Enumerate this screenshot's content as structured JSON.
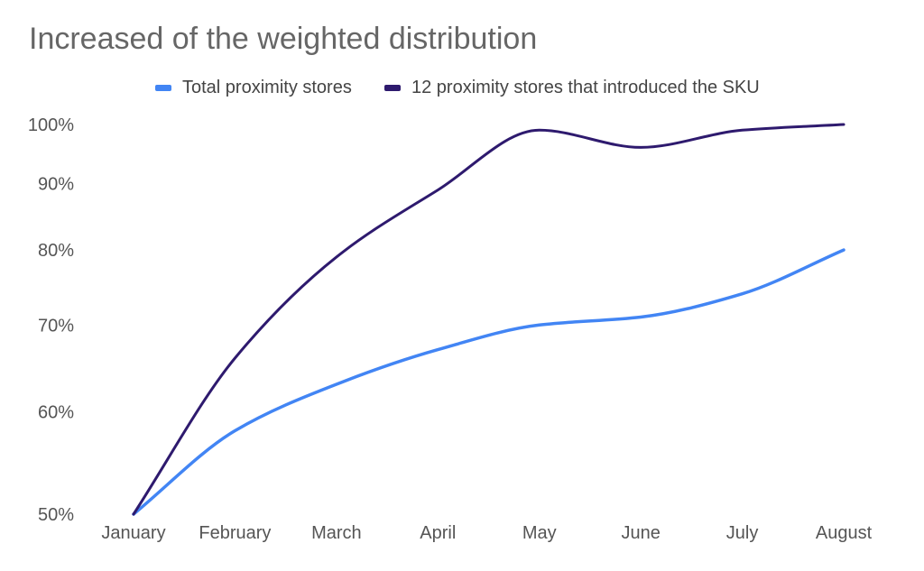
{
  "chart_data": {
    "type": "line",
    "title": "Increased of the weighted distribution",
    "xlabel": "",
    "ylabel": "",
    "categories": [
      "January",
      "February",
      "March",
      "April",
      "May",
      "June",
      "July",
      "August"
    ],
    "y_ticks": [
      50,
      60,
      70,
      80,
      90,
      100
    ],
    "y_tick_labels": [
      "50%",
      "60%",
      "70%",
      "80%",
      "90%",
      "100%"
    ],
    "ylim": [
      50,
      100
    ],
    "y_scale": "log",
    "grid": false,
    "legend_position": "top",
    "series": [
      {
        "name": "Total proximity stores",
        "color": "#4285F4",
        "values": [
          50,
          58,
          63,
          67,
          70,
          71,
          74,
          80
        ]
      },
      {
        "name": "12 proximity stores that introduced the SKU",
        "color": "#2E1A6E",
        "values": [
          50,
          66,
          79,
          89,
          99,
          96,
          99,
          100
        ]
      }
    ]
  }
}
